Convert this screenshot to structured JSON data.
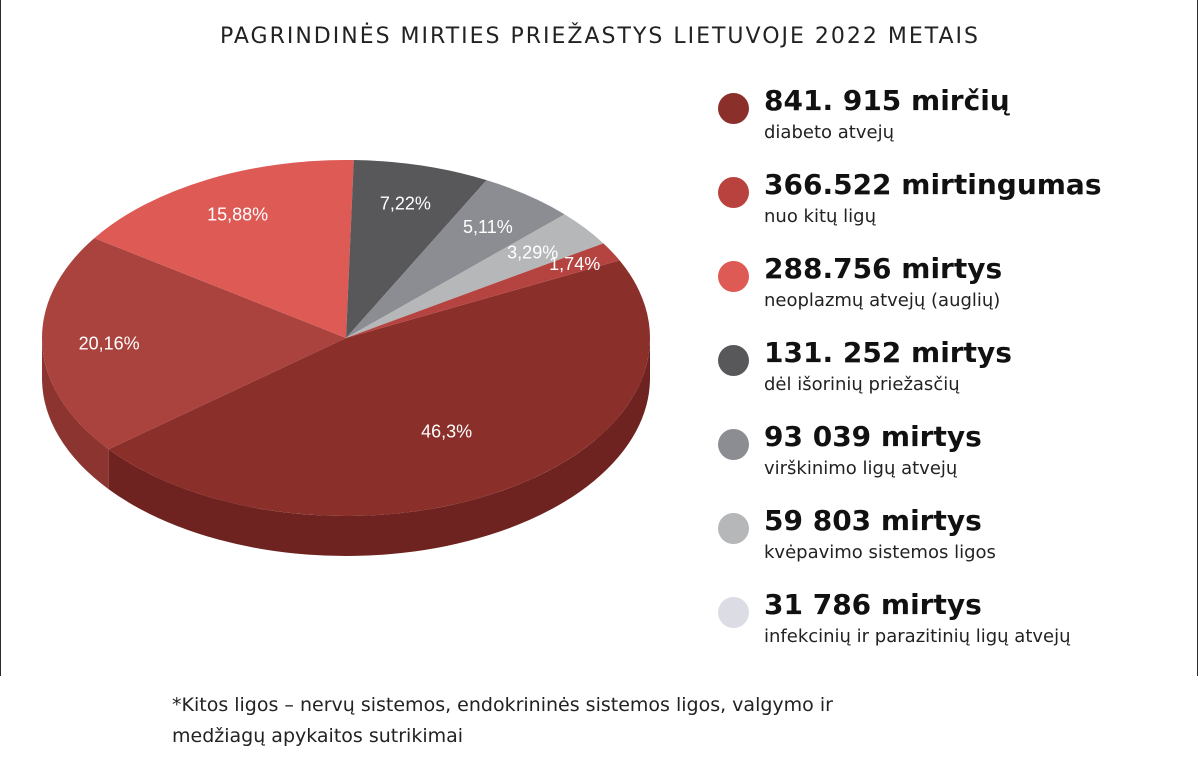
{
  "chart_data": {
    "type": "pie",
    "title": "PAGRINDINĖS MIRTIES PRIEŽASTYS LIETUVOJE 2022 METAIS",
    "slices": [
      {
        "label": "46,3%",
        "value": 46.3,
        "color": "#8b2f2a",
        "side": "#6e2320"
      },
      {
        "label": "20,16%",
        "value": 20.16,
        "color": "#aa423e",
        "side": "#8c3430"
      },
      {
        "label": "15,88%",
        "value": 15.88,
        "color": "#de5a55",
        "side": "#b9463f"
      },
      {
        "label": "7,22%",
        "value": 7.22,
        "color": "#58585a",
        "side": "#454547"
      },
      {
        "label": "5,11%",
        "value": 5.11,
        "color": "#8b8d92",
        "side": "#707276"
      },
      {
        "label": "3,29%",
        "value": 3.29,
        "color": "#b5b7b8",
        "side": "#96989a"
      },
      {
        "label": "1,74%",
        "value": 1.74,
        "color": "#b54440",
        "side": "#933531"
      }
    ]
  },
  "legend": [
    {
      "value": "841. 915 mirčių",
      "desc": "diabeto atvejų",
      "color": "#8b2f2a"
    },
    {
      "value": "366.522 mirtingumas",
      "desc": "nuo kitų ligų",
      "color": "#b9423e"
    },
    {
      "value": "288.756 mirtys",
      "desc": "neoplazmų atvejų (auglių)",
      "color": "#de5a55"
    },
    {
      "value": "131. 252 mirtys",
      "desc": "dėl išorinių priežasčių",
      "color": "#58585a"
    },
    {
      "value": "93 039 mirtys",
      "desc": "virškinimo ligų atvejų",
      "color": "#8b8d92"
    },
    {
      "value": "59 803 mirtys",
      "desc": "kvėpavimo sistemos ligos",
      "color": "#b5b7b8"
    },
    {
      "value": "31 786 mirtys",
      "desc": "infekcinių ir parazitinių ligų atvejų",
      "color": "#dcdce4"
    }
  ],
  "footnote": {
    "line1": "*Kitos ligos – nervų sistemos, endokrininės sistemos ligos, valgymo ir",
    "line2": "medžiagų apykaitos sutrikimai"
  }
}
